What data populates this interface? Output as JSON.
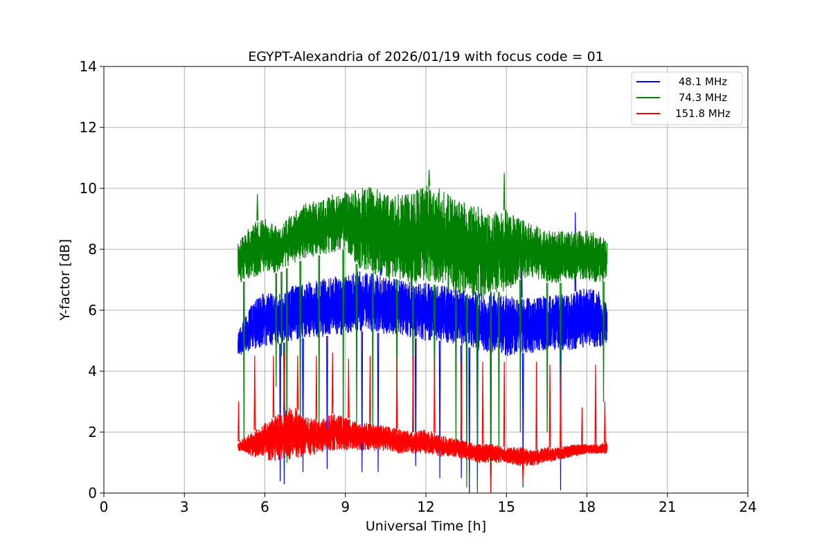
{
  "chart_data": {
    "type": "line",
    "title": "EGYPT-Alexandria of 2026/01/19 with focus code = 01",
    "xlabel": "Universal Time [h]",
    "ylabel": "Y-factor [dB]",
    "xlim": [
      0,
      24
    ],
    "ylim": [
      0,
      14
    ],
    "xticks": [
      0,
      3,
      6,
      9,
      12,
      15,
      18,
      21,
      24
    ],
    "yticks": [
      0,
      2,
      4,
      6,
      8,
      10,
      12,
      14
    ],
    "grid": true,
    "legend_position": "top-right",
    "series": [
      {
        "name": "48.1 MHz",
        "color": "#0000ff",
        "x": [
          5.0,
          5.5,
          6.0,
          6.5,
          7.0,
          7.5,
          8.0,
          8.5,
          9.0,
          9.5,
          10.0,
          10.5,
          11.0,
          11.5,
          12.0,
          12.5,
          13.0,
          13.5,
          14.0,
          14.5,
          15.0,
          15.5,
          16.0,
          16.5,
          17.0,
          17.5,
          18.0,
          18.5,
          18.75
        ],
        "low": [
          4.5,
          4.7,
          4.8,
          4.9,
          5.0,
          5.1,
          5.1,
          5.2,
          5.2,
          5.3,
          5.3,
          5.2,
          5.2,
          5.1,
          5.0,
          5.0,
          4.9,
          4.8,
          4.7,
          4.6,
          4.5,
          4.6,
          4.6,
          4.7,
          4.7,
          4.7,
          4.8,
          4.8,
          4.9
        ],
        "high": [
          5.3,
          6.2,
          6.6,
          6.5,
          6.8,
          6.9,
          7.0,
          7.1,
          7.1,
          7.3,
          7.2,
          7.1,
          7.0,
          6.9,
          6.9,
          6.8,
          6.8,
          6.7,
          6.6,
          6.6,
          6.5,
          6.4,
          6.4,
          6.5,
          6.5,
          6.6,
          6.8,
          6.6,
          6.2
        ],
        "dips": [
          [
            6.55,
            0.4
          ],
          [
            6.7,
            0.3
          ],
          [
            7.4,
            0.7
          ],
          [
            8.3,
            0.8
          ],
          [
            9.6,
            0.7
          ],
          [
            10.2,
            0.7
          ],
          [
            11.6,
            0.9
          ],
          [
            12.5,
            0.5
          ],
          [
            13.3,
            0.5
          ],
          [
            13.6,
            0.0
          ],
          [
            13.9,
            0.1
          ],
          [
            14.4,
            0.0
          ],
          [
            15.6,
            0.2
          ],
          [
            17.0,
            0.1
          ]
        ],
        "spikes": [
          [
            17.55,
            9.2
          ],
          [
            15.55,
            7.6
          ],
          [
            10.3,
            7.6
          ]
        ]
      },
      {
        "name": "74.3 MHz",
        "color": "#008000",
        "x": [
          5.0,
          5.5,
          6.0,
          6.5,
          7.0,
          7.5,
          8.0,
          8.5,
          9.0,
          9.5,
          10.0,
          10.5,
          11.0,
          11.5,
          12.0,
          12.5,
          13.0,
          13.5,
          14.0,
          14.5,
          15.0,
          15.5,
          16.0,
          16.5,
          17.0,
          17.5,
          18.0,
          18.5,
          18.75
        ],
        "low": [
          6.9,
          7.0,
          7.3,
          7.2,
          7.5,
          7.7,
          7.8,
          7.9,
          8.0,
          7.4,
          7.2,
          7.0,
          7.0,
          6.8,
          6.9,
          6.8,
          6.5,
          6.5,
          6.4,
          6.6,
          6.6,
          7.0,
          7.0,
          6.9,
          6.9,
          7.0,
          7.0,
          6.9,
          7.0
        ],
        "high": [
          8.2,
          8.9,
          9.0,
          8.7,
          9.2,
          9.5,
          9.6,
          9.8,
          9.9,
          10.0,
          10.1,
          9.8,
          9.8,
          9.9,
          10.1,
          10.0,
          9.7,
          9.5,
          9.4,
          9.2,
          9.3,
          9.0,
          8.8,
          8.6,
          8.6,
          8.6,
          8.6,
          8.5,
          8.3
        ],
        "dips": [
          [
            5.2,
            1.5
          ],
          [
            6.4,
            3.5
          ],
          [
            6.6,
            4.5
          ],
          [
            6.8,
            1.0
          ],
          [
            7.3,
            1.5
          ],
          [
            8.0,
            2.0
          ],
          [
            8.9,
            1.5
          ],
          [
            9.4,
            2.0
          ],
          [
            10.0,
            2.0
          ],
          [
            10.9,
            2.0
          ],
          [
            11.5,
            2.0
          ],
          [
            12.3,
            2.5
          ],
          [
            13.1,
            1.5
          ],
          [
            13.5,
            0.2
          ],
          [
            13.9,
            0.0
          ],
          [
            14.4,
            0.0
          ],
          [
            14.7,
            1.0
          ],
          [
            15.5,
            2.0
          ],
          [
            16.5,
            2.0
          ],
          [
            17.0,
            1.0
          ],
          [
            18.6,
            3.0
          ]
        ],
        "spikes": [
          [
            5.7,
            9.8
          ],
          [
            12.1,
            10.6
          ],
          [
            14.9,
            10.5
          ]
        ]
      },
      {
        "name": "151.8 MHz",
        "color": "#ff0000",
        "x": [
          5.0,
          5.5,
          6.0,
          6.5,
          7.0,
          7.5,
          8.0,
          8.5,
          9.0,
          9.5,
          10.0,
          10.5,
          11.0,
          11.5,
          12.0,
          12.5,
          13.0,
          13.5,
          14.0,
          14.5,
          15.0,
          15.5,
          16.0,
          16.5,
          17.0,
          17.5,
          18.0,
          18.5,
          18.75
        ],
        "low": [
          1.4,
          1.2,
          1.1,
          1.0,
          1.1,
          1.2,
          1.3,
          1.4,
          1.4,
          1.4,
          1.4,
          1.4,
          1.3,
          1.3,
          1.3,
          1.2,
          1.2,
          1.1,
          1.0,
          1.0,
          1.0,
          0.9,
          0.9,
          1.0,
          1.1,
          1.2,
          1.3,
          1.3,
          1.3
        ],
        "high": [
          1.7,
          2.0,
          2.3,
          2.6,
          2.9,
          2.5,
          2.4,
          2.6,
          2.5,
          2.3,
          2.3,
          2.2,
          2.1,
          2.0,
          2.1,
          1.9,
          1.8,
          1.7,
          1.6,
          1.6,
          1.5,
          1.5,
          1.4,
          1.5,
          1.5,
          1.6,
          1.6,
          1.6,
          1.7
        ],
        "dips": [
          [
            14.4,
            0.0
          ],
          [
            15.6,
            0.3
          ]
        ],
        "spikes": [
          [
            5.0,
            3.0
          ],
          [
            5.6,
            4.5
          ],
          [
            6.3,
            4.5
          ],
          [
            6.7,
            4.6
          ],
          [
            7.2,
            4.5
          ],
          [
            7.9,
            4.5
          ],
          [
            8.5,
            4.6
          ],
          [
            9.1,
            4.4
          ],
          [
            9.9,
            4.5
          ],
          [
            10.9,
            4.4
          ],
          [
            11.5,
            4.5
          ],
          [
            12.3,
            4.5
          ],
          [
            13.3,
            4.3
          ],
          [
            14.1,
            4.3
          ],
          [
            14.9,
            4.3
          ],
          [
            16.1,
            4.3
          ],
          [
            16.6,
            4.2
          ],
          [
            17.0,
            4.3
          ],
          [
            17.8,
            2.8
          ],
          [
            18.3,
            4.2
          ],
          [
            18.65,
            3.0
          ]
        ]
      }
    ]
  }
}
